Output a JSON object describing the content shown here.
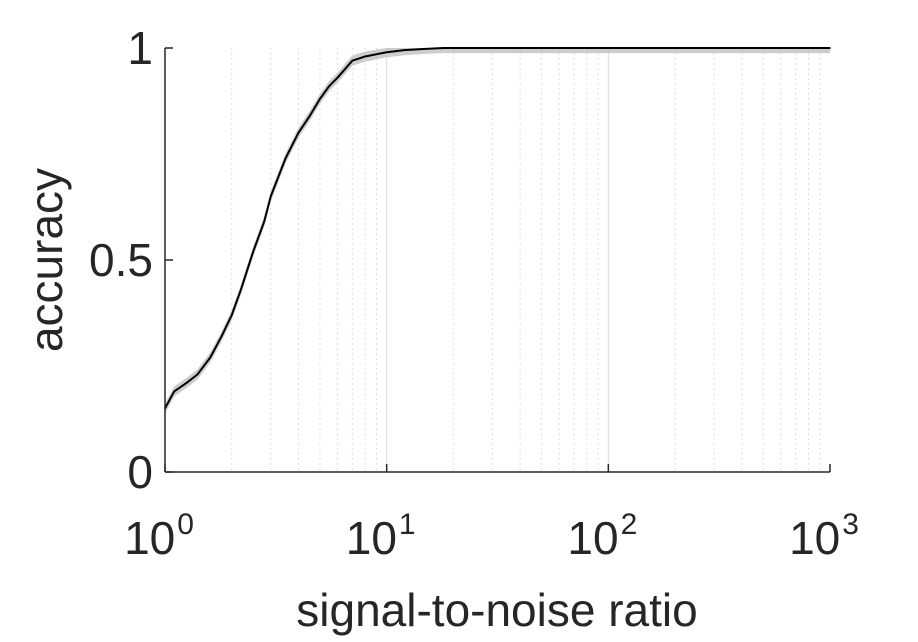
{
  "chart_data": {
    "type": "line",
    "title": "",
    "xlabel": "signal-to-noise ratio",
    "ylabel": "accuracy",
    "x_scale": "log",
    "xlim": [
      1,
      1000
    ],
    "ylim": [
      0,
      1
    ],
    "x_ticks": [
      {
        "value": 1,
        "base": "10",
        "exp": "0"
      },
      {
        "value": 10,
        "base": "10",
        "exp": "1"
      },
      {
        "value": 100,
        "base": "10",
        "exp": "2"
      },
      {
        "value": 1000,
        "base": "10",
        "exp": "3"
      }
    ],
    "y_ticks": [
      {
        "value": 0,
        "label": "0"
      },
      {
        "value": 0.5,
        "label": "0.5"
      },
      {
        "value": 1,
        "label": "1"
      }
    ],
    "grid": "vertical minor and major lines on x-axis",
    "series": [
      {
        "line_color": "#000000",
        "band_color": "#c8c8c8",
        "x": [
          1.0,
          1.1,
          1.25,
          1.4,
          1.6,
          1.8,
          2.0,
          2.2,
          2.5,
          2.8,
          3.0,
          3.5,
          4.0,
          4.5,
          5.0,
          5.5,
          6.0,
          7.0,
          8.0,
          10.0,
          12.0,
          15.0,
          18.0,
          25.0,
          50.0,
          100.0,
          200.0,
          500.0,
          1000.0
        ],
        "y": [
          0.15,
          0.19,
          0.21,
          0.23,
          0.27,
          0.32,
          0.37,
          0.43,
          0.52,
          0.59,
          0.65,
          0.74,
          0.8,
          0.84,
          0.88,
          0.91,
          0.93,
          0.97,
          0.98,
          0.99,
          0.995,
          0.998,
          1.0,
          1.0,
          1.0,
          1.0,
          1.0,
          1.0,
          1.0
        ],
        "band": 0.012
      }
    ]
  }
}
